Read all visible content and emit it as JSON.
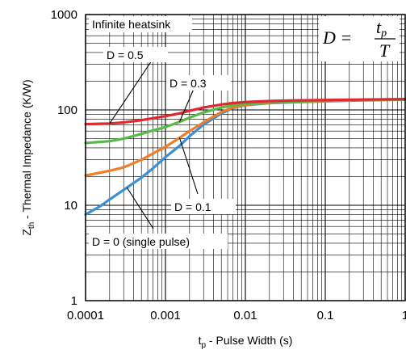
{
  "chart_data": {
    "type": "line",
    "xlabel": {
      "main": "t",
      "sub": "p",
      "rest": " - Pulse Width (s)"
    },
    "ylabel": {
      "main": "Z",
      "sub": "th",
      "rest": " - Thermal Impedance (K/W)"
    },
    "xscale": "log",
    "yscale": "log",
    "xlim": [
      0.0001,
      1
    ],
    "ylim": [
      1,
      1000
    ],
    "x_tick_labels": [
      "0.0001",
      "0.001",
      "0.01",
      "0.1",
      "1"
    ],
    "y_tick_labels": [
      "1",
      "10",
      "100",
      "1000"
    ],
    "grid": true,
    "condition_label": "Infinite heatsink",
    "formula": {
      "lhs": "D =",
      "numerator": "t",
      "numerator_sub": "p",
      "denominator": "T"
    },
    "series": [
      {
        "label": "D = 0 (single pulse)",
        "color": "#3b8fd6",
        "x": [
          0.0001,
          0.00015,
          0.0002,
          0.0003,
          0.0005,
          0.0007,
          0.001,
          0.0015,
          0.002,
          0.003,
          0.005,
          0.007,
          0.01,
          0.02,
          0.05,
          0.1,
          0.2,
          0.5,
          1
        ],
        "y": [
          8,
          9.7,
          11.5,
          14.5,
          19.5,
          24.5,
          32,
          42,
          53,
          70,
          92,
          105,
          112,
          118,
          121,
          123,
          125,
          127,
          128
        ]
      },
      {
        "label": "D = 0.1",
        "color": "#f07d2a",
        "x": [
          0.0001,
          0.0002,
          0.0003,
          0.0005,
          0.0007,
          0.001,
          0.0015,
          0.002,
          0.003,
          0.005,
          0.007,
          0.01,
          0.02,
          0.05,
          0.1,
          0.2,
          0.5,
          1
        ],
        "y": [
          20.5,
          23,
          25,
          30,
          35,
          41,
          51,
          60,
          74,
          95,
          106,
          113,
          119,
          122,
          124,
          126,
          128,
          129
        ]
      },
      {
        "label": "D = 0.3",
        "color": "#57b947",
        "x": [
          0.0001,
          0.0002,
          0.0003,
          0.0005,
          0.0007,
          0.001,
          0.0015,
          0.002,
          0.003,
          0.005,
          0.007,
          0.01,
          0.02,
          0.05,
          0.1,
          0.2,
          0.5,
          1
        ],
        "y": [
          45,
          47,
          50,
          56,
          61,
          66,
          75,
          83,
          94,
          106,
          112,
          116,
          120,
          123,
          125,
          127,
          128,
          129
        ]
      },
      {
        "label": "D = 0.5",
        "color": "#e0282e",
        "x": [
          0.0001,
          0.0002,
          0.0003,
          0.0005,
          0.0007,
          0.001,
          0.0015,
          0.002,
          0.003,
          0.005,
          0.007,
          0.01,
          0.02,
          0.05,
          0.1,
          0.2,
          0.5,
          1
        ],
        "y": [
          71,
          72,
          74,
          78,
          82,
          86,
          92,
          98,
          106,
          114,
          118,
          121,
          124,
          126,
          127,
          128,
          129,
          130
        ]
      }
    ],
    "annotations": [
      {
        "text": "D = 0.5",
        "series": 3,
        "at_x": 0.0002
      },
      {
        "text": "D = 0.3",
        "series": 2,
        "at_x": 0.0015
      },
      {
        "text": "D = 0.1",
        "series": 1,
        "at_x": 0.0015
      },
      {
        "text": "D = 0 (single pulse)",
        "series": 0,
        "at_x": 0.00033
      }
    ]
  }
}
